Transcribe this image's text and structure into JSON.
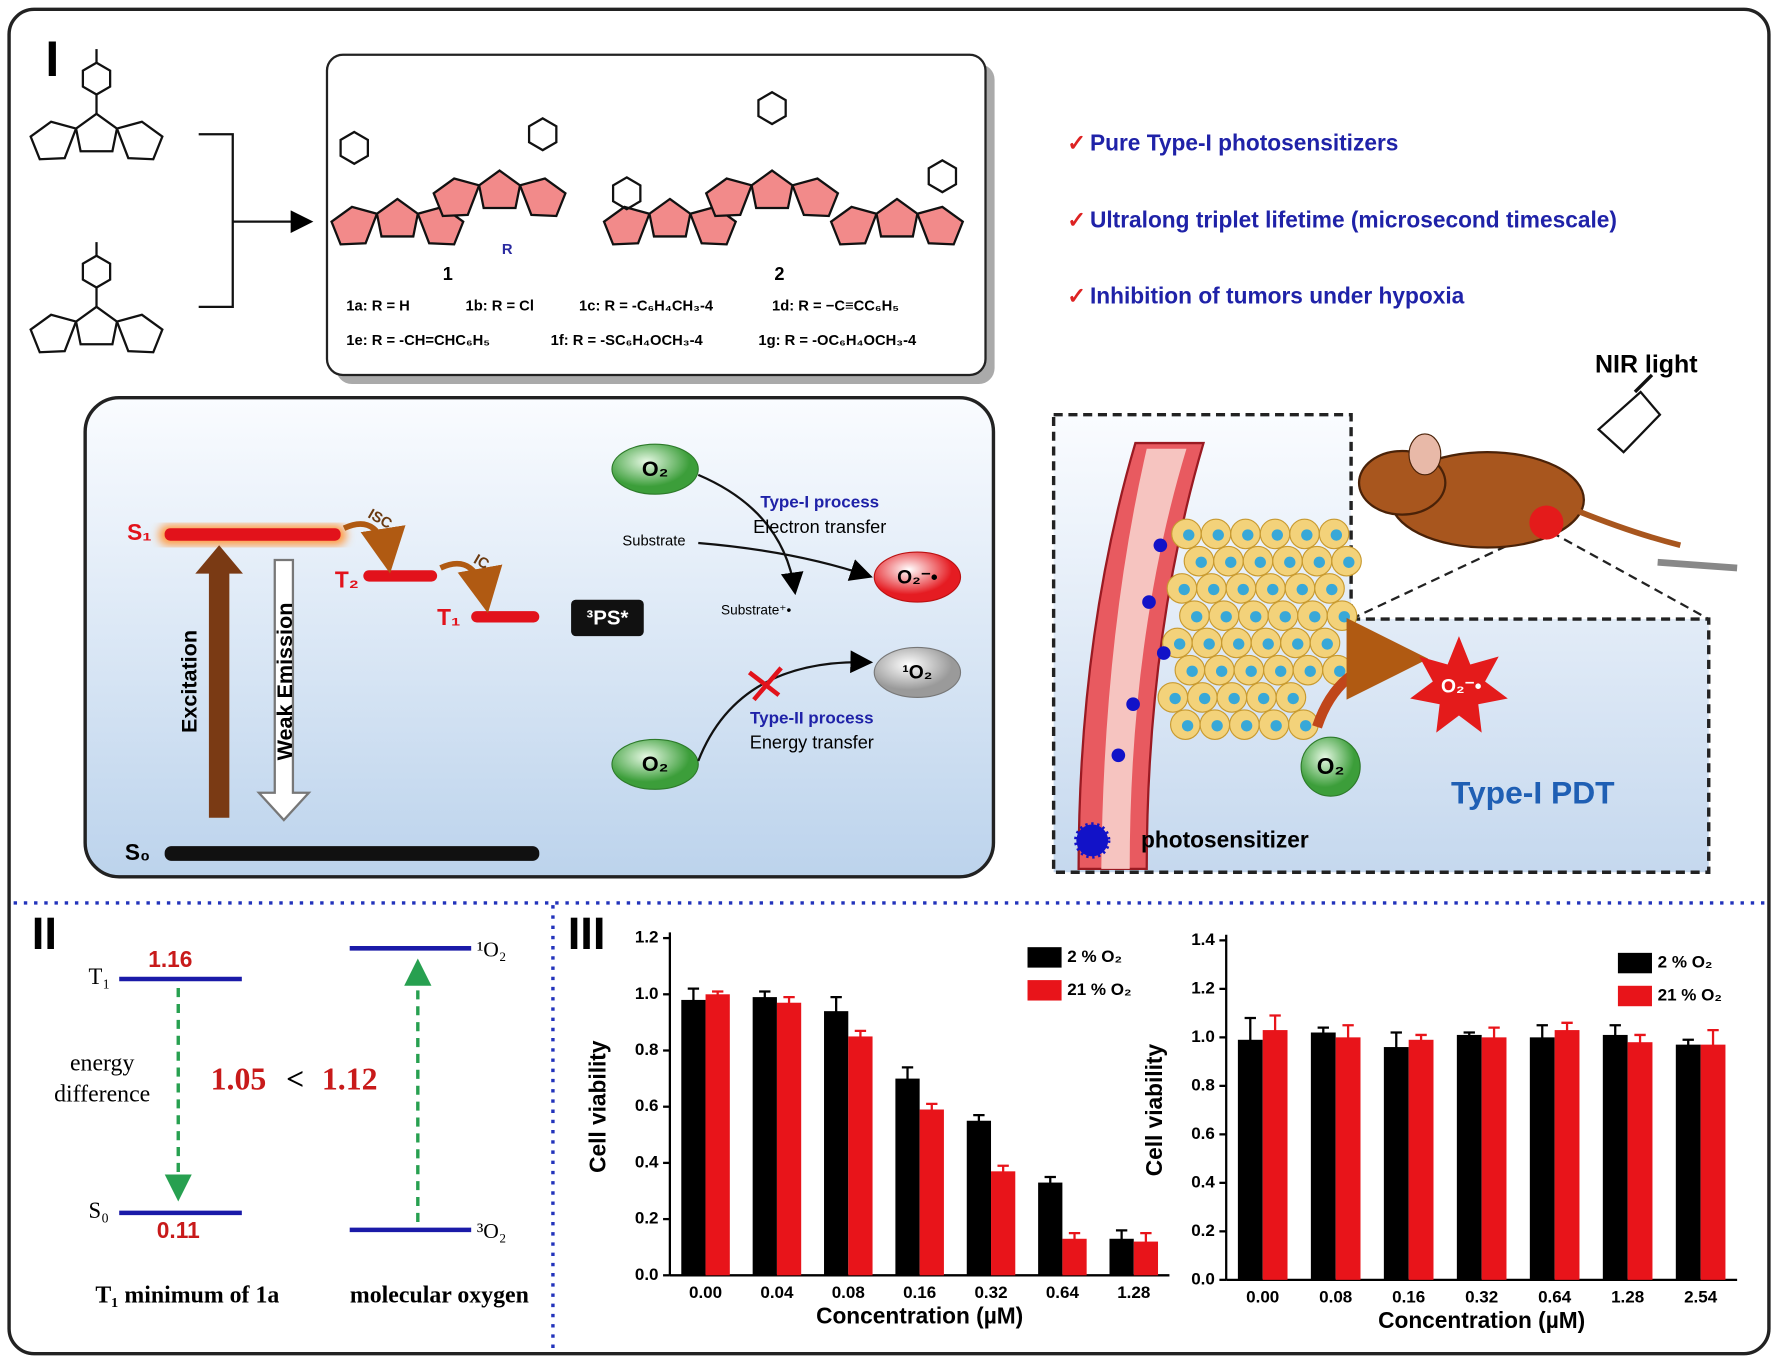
{
  "panels": {
    "I": "I",
    "II": "II",
    "III": "III"
  },
  "compounds": {
    "one": "1",
    "two": "2",
    "labels": [
      "1a: R = H",
      "1b: R = Cl",
      "1c: R = -C₆H₄CH₃-4",
      "1d: R = −C≡CC₆H₅",
      "1e: R = -CH=CHC₆H₅",
      "1f: R = -SC₆H₄OCH₃-4",
      "1g: R = -OC₆H₄OCH₃-4"
    ],
    "r": "R"
  },
  "features": {
    "check": "✓",
    "items": [
      "Pure Type-I photosensitizers",
      "Ultralong triplet lifetime (microsecond timescale)",
      "Inhibition of tumors under hypoxia"
    ]
  },
  "jablonski": {
    "s1": "S₁",
    "t2": "T₂",
    "t1": "T₁",
    "s0": "S₀",
    "isc": "ISC",
    "ic": "IC",
    "excitation": "Excitation",
    "emission": "Weak Emission",
    "ps": "³PS*",
    "o2": "O₂",
    "type1": "Type-I process",
    "electron": "Electron transfer",
    "substrate": "Substrate",
    "substrate_rad": "Substrate⁺•",
    "superoxide": "O₂⁻•",
    "singlet": "¹O₂",
    "type2": "Type-II process",
    "energy": "Energy transfer"
  },
  "pdt": {
    "nir": "NIR light",
    "title": "Type-I PDT",
    "ps": "photosensitizer",
    "o2": "O₂",
    "superoxide": "O₂⁻•"
  },
  "energy_diagram": {
    "t1": "T₁",
    "t1_value": 1.16,
    "s0": "S₀",
    "s0_value": 0.11,
    "diff_line1": "energy",
    "diff_line2": "difference",
    "left_value": 1.05,
    "lt": "<",
    "right_value": 1.12,
    "singlet": "¹O₂",
    "triplet": "³O₂",
    "caption_left": "T₁ minimum of 1a",
    "caption_right": "molecular oxygen"
  },
  "chart_data": [
    {
      "type": "bar",
      "xlabel": "Concentration (µM)",
      "ylabel": "Cell viability",
      "categories": [
        "0.00",
        "0.04",
        "0.08",
        "0.16",
        "0.32",
        "0.64",
        "1.28"
      ],
      "series": [
        {
          "name": "2 % O₂",
          "color": "#000000",
          "values": [
            0.98,
            0.99,
            0.94,
            0.7,
            0.55,
            0.33,
            0.13
          ],
          "errors": [
            0.04,
            0.02,
            0.05,
            0.04,
            0.02,
            0.02,
            0.03
          ]
        },
        {
          "name": "21 % O₂",
          "color": "#e8141a",
          "values": [
            1.0,
            0.97,
            0.85,
            0.59,
            0.37,
            0.13,
            0.12
          ],
          "errors": [
            0.01,
            0.02,
            0.02,
            0.02,
            0.02,
            0.02,
            0.03
          ]
        }
      ],
      "ylim": [
        0,
        1.2
      ],
      "yticks": [
        {
          "value": 0,
          "label": "0.0"
        },
        {
          "value": 0.2,
          "label": "0.2"
        },
        {
          "value": 0.4,
          "label": "0.4"
        },
        {
          "value": 0.6,
          "label": "0.6"
        },
        {
          "value": 0.8,
          "label": "0.8"
        },
        {
          "value": 1,
          "label": "1.0"
        },
        {
          "value": 1.2,
          "label": "1.2"
        }
      ]
    },
    {
      "type": "bar",
      "xlabel": "Concentration (µM)",
      "ylabel": "Cell viability",
      "categories": [
        "0.00",
        "0.08",
        "0.16",
        "0.32",
        "0.64",
        "1.28",
        "2.54"
      ],
      "series": [
        {
          "name": "2 % O₂",
          "color": "#000000",
          "values": [
            0.99,
            1.02,
            0.96,
            1.01,
            1.0,
            1.01,
            0.97
          ],
          "errors": [
            0.09,
            0.02,
            0.06,
            0.01,
            0.05,
            0.04,
            0.02
          ]
        },
        {
          "name": "21 % O₂",
          "color": "#e8141a",
          "values": [
            1.03,
            1.0,
            0.99,
            1.0,
            1.03,
            0.98,
            0.97
          ],
          "errors": [
            0.06,
            0.05,
            0.02,
            0.04,
            0.03,
            0.03,
            0.06
          ]
        }
      ],
      "ylim": [
        0,
        1.4
      ],
      "yticks": [
        {
          "value": 0,
          "label": "0.0"
        },
        {
          "value": 0.2,
          "label": "0.2"
        },
        {
          "value": 0.4,
          "label": "0.4"
        },
        {
          "value": 0.6,
          "label": "0.6"
        },
        {
          "value": 0.8,
          "label": "0.8"
        },
        {
          "value": 1,
          "label": "1.0"
        },
        {
          "value": 1.2,
          "label": "1.2"
        },
        {
          "value": 1.4,
          "label": "1.4"
        }
      ]
    }
  ]
}
